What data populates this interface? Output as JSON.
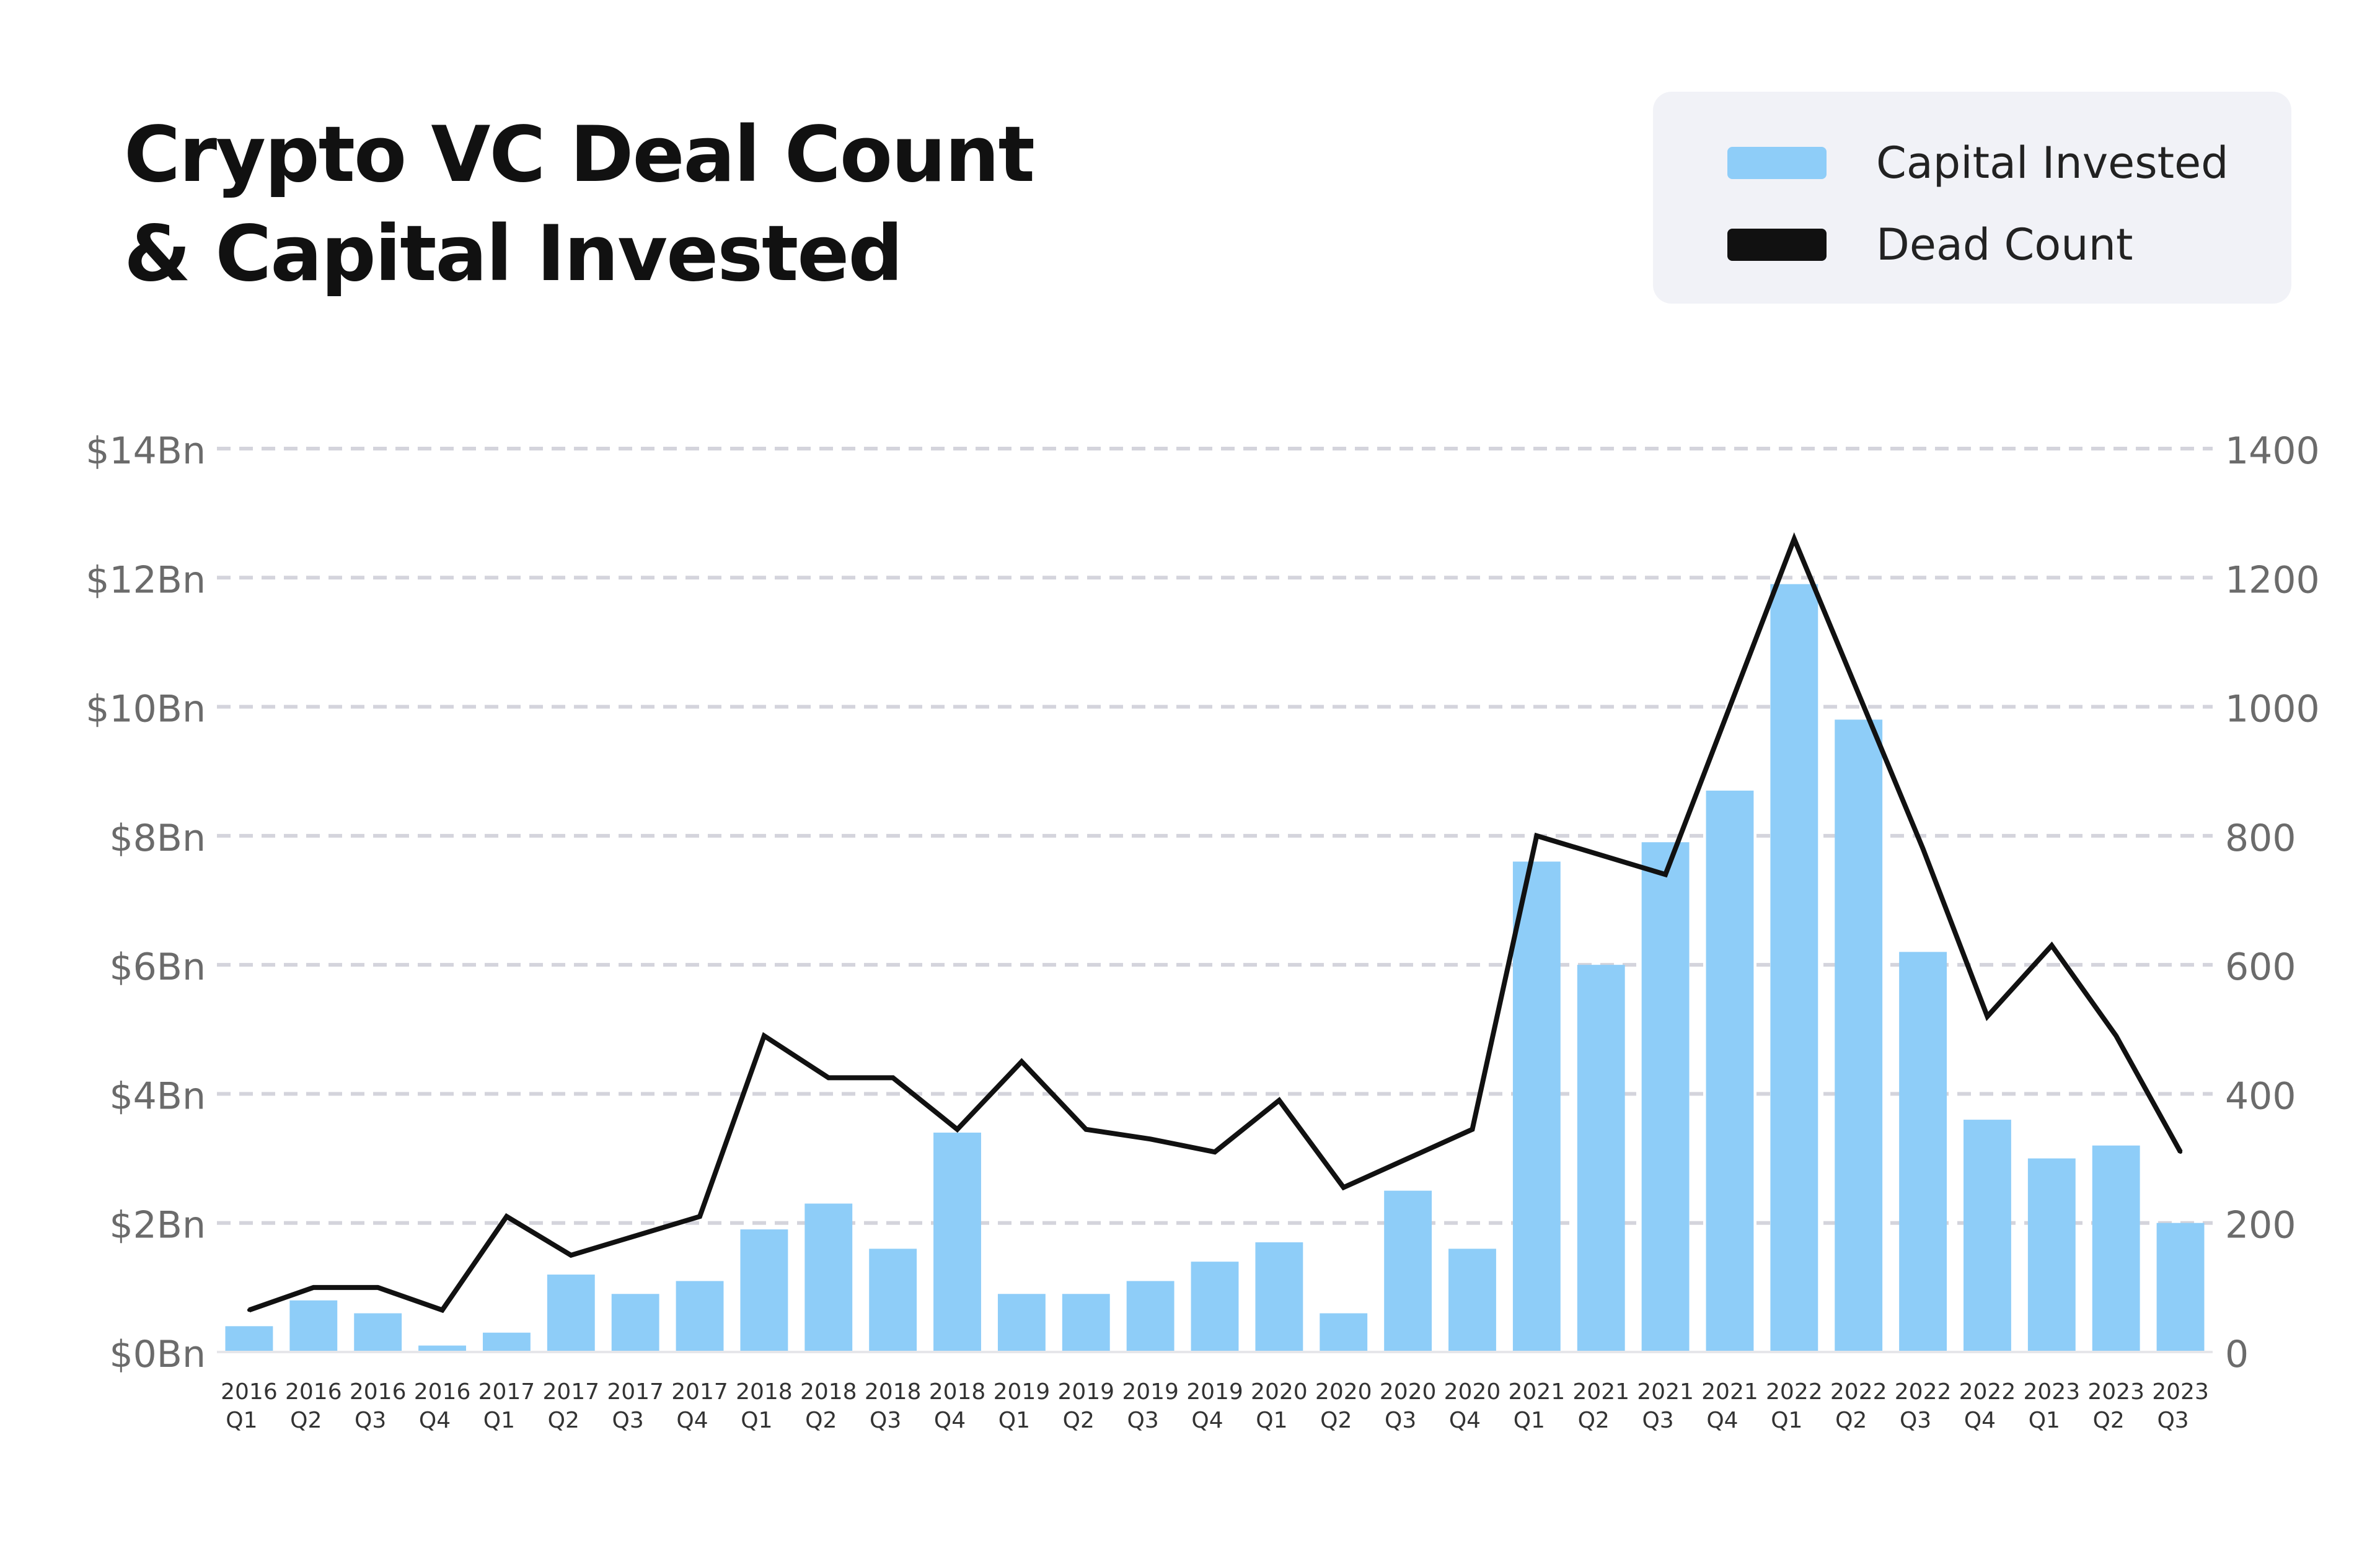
{
  "title": {
    "line1": "Crypto VC Deal Count",
    "line2": "& Capital Invested"
  },
  "legend": {
    "items": [
      {
        "label": "Capital Invested",
        "color": "#8ecdf8"
      },
      {
        "label": "Dead Count",
        "color": "#111111"
      }
    ]
  },
  "colors": {
    "bar": "#8ecdf8",
    "line": "#111111",
    "grid": "#d4d4dc",
    "axis_text": "#6b6b6b"
  },
  "chart_data": {
    "type": "bar+line",
    "title": "Crypto VC Deal Count & Capital Invested",
    "categories": [
      [
        "2016",
        "Q1"
      ],
      [
        "2016",
        "Q2"
      ],
      [
        "2016",
        "Q3"
      ],
      [
        "2016",
        "Q4"
      ],
      [
        "2017",
        "Q1"
      ],
      [
        "2017",
        "Q2"
      ],
      [
        "2017",
        "Q3"
      ],
      [
        "2017",
        "Q4"
      ],
      [
        "2018",
        "Q1"
      ],
      [
        "2018",
        "Q2"
      ],
      [
        "2018",
        "Q3"
      ],
      [
        "2018",
        "Q4"
      ],
      [
        "2019",
        "Q1"
      ],
      [
        "2019",
        "Q2"
      ],
      [
        "2019",
        "Q3"
      ],
      [
        "2019",
        "Q4"
      ],
      [
        "2020",
        "Q1"
      ],
      [
        "2020",
        "Q2"
      ],
      [
        "2020",
        "Q3"
      ],
      [
        "2020",
        "Q4"
      ],
      [
        "2021",
        "Q1"
      ],
      [
        "2021",
        "Q2"
      ],
      [
        "2021",
        "Q3"
      ],
      [
        "2021",
        "Q4"
      ],
      [
        "2022",
        "Q1"
      ],
      [
        "2022",
        "Q2"
      ],
      [
        "2022",
        "Q3"
      ],
      [
        "2022",
        "Q4"
      ],
      [
        "2023",
        "Q1"
      ],
      [
        "2023",
        "Q2"
      ],
      [
        "2023",
        "Q3"
      ]
    ],
    "series": [
      {
        "name": "Capital Invested",
        "type": "bar",
        "axis": "left",
        "unit": "$Bn",
        "values": [
          0.4,
          0.8,
          0.6,
          0.1,
          0.3,
          1.2,
          0.9,
          1.1,
          1.9,
          2.3,
          1.6,
          3.4,
          0.9,
          0.9,
          1.1,
          1.4,
          1.7,
          0.6,
          2.5,
          1.6,
          7.6,
          6.0,
          7.9,
          8.7,
          11.9,
          9.8,
          6.2,
          3.6,
          3.0,
          3.2,
          2.0
        ]
      },
      {
        "name": "Dead Count",
        "type": "line",
        "axis": "right",
        "values": [
          65,
          100,
          100,
          65,
          210,
          150,
          180,
          210,
          490,
          425,
          425,
          345,
          450,
          345,
          330,
          310,
          390,
          255,
          300,
          345,
          800,
          770,
          740,
          1000,
          1260,
          1020,
          780,
          520,
          630,
          490,
          310
        ]
      }
    ],
    "y_left": {
      "min": 0,
      "max": 14,
      "ticks": [
        "$0Bn",
        "$2Bn",
        "$4Bn",
        "$6Bn",
        "$8Bn",
        "$10Bn",
        "$12Bn",
        "$14Bn"
      ]
    },
    "y_right": {
      "min": 0,
      "max": 1400,
      "ticks": [
        "0",
        "200",
        "400",
        "600",
        "800",
        "1000",
        "1200",
        "1400"
      ]
    },
    "grid": true,
    "legend_position": "top-right"
  }
}
